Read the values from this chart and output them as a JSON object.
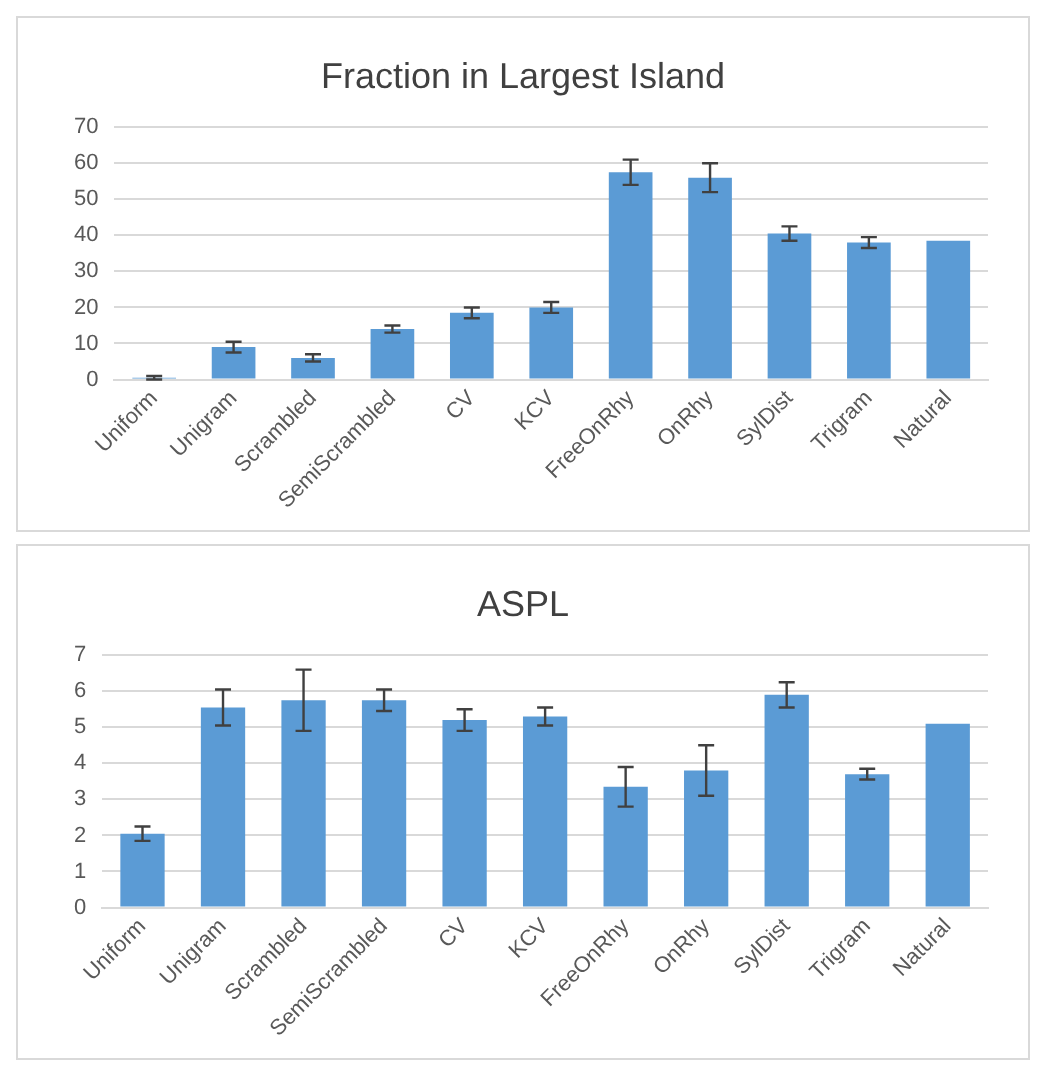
{
  "chart_data": [
    {
      "type": "bar",
      "title": "Fraction in Largest Island",
      "categories": [
        "Uniform",
        "Unigram",
        "Scrambled",
        "SemiScrambled",
        "CV",
        "KCV",
        "FreeOnRhy",
        "OnRhy",
        "SylDist",
        "Trigram",
        "Natural"
      ],
      "values": [
        0.5,
        9,
        6,
        14,
        18.5,
        20,
        57.5,
        56,
        40.5,
        38,
        38.5
      ],
      "errors": [
        0.5,
        1.5,
        1,
        1,
        1.5,
        1.5,
        3.5,
        4,
        2,
        1.5,
        null
      ],
      "color": "#5b9bd5",
      "ylim": [
        0,
        70
      ],
      "yticks": [
        0,
        10,
        20,
        30,
        40,
        50,
        60,
        70
      ],
      "grid": "y"
    },
    {
      "type": "bar",
      "title": "ASPL",
      "categories": [
        "Uniform",
        "Unigram",
        "Scrambled",
        "SemiScrambled",
        "CV",
        "KCV",
        "FreeOnRhy",
        "OnRhy",
        "SylDist",
        "Trigram",
        "Natural"
      ],
      "values": [
        2.05,
        5.55,
        5.75,
        5.75,
        5.2,
        5.3,
        3.35,
        3.8,
        5.9,
        3.7,
        5.1
      ],
      "errors": [
        0.2,
        0.5,
        0.85,
        0.3,
        0.3,
        0.25,
        0.55,
        0.7,
        0.35,
        0.15,
        null
      ],
      "color": "#5b9bd5",
      "ylim": [
        0,
        7
      ],
      "yticks": [
        0,
        1,
        2,
        3,
        4,
        5,
        6,
        7
      ],
      "grid": "y"
    }
  ]
}
